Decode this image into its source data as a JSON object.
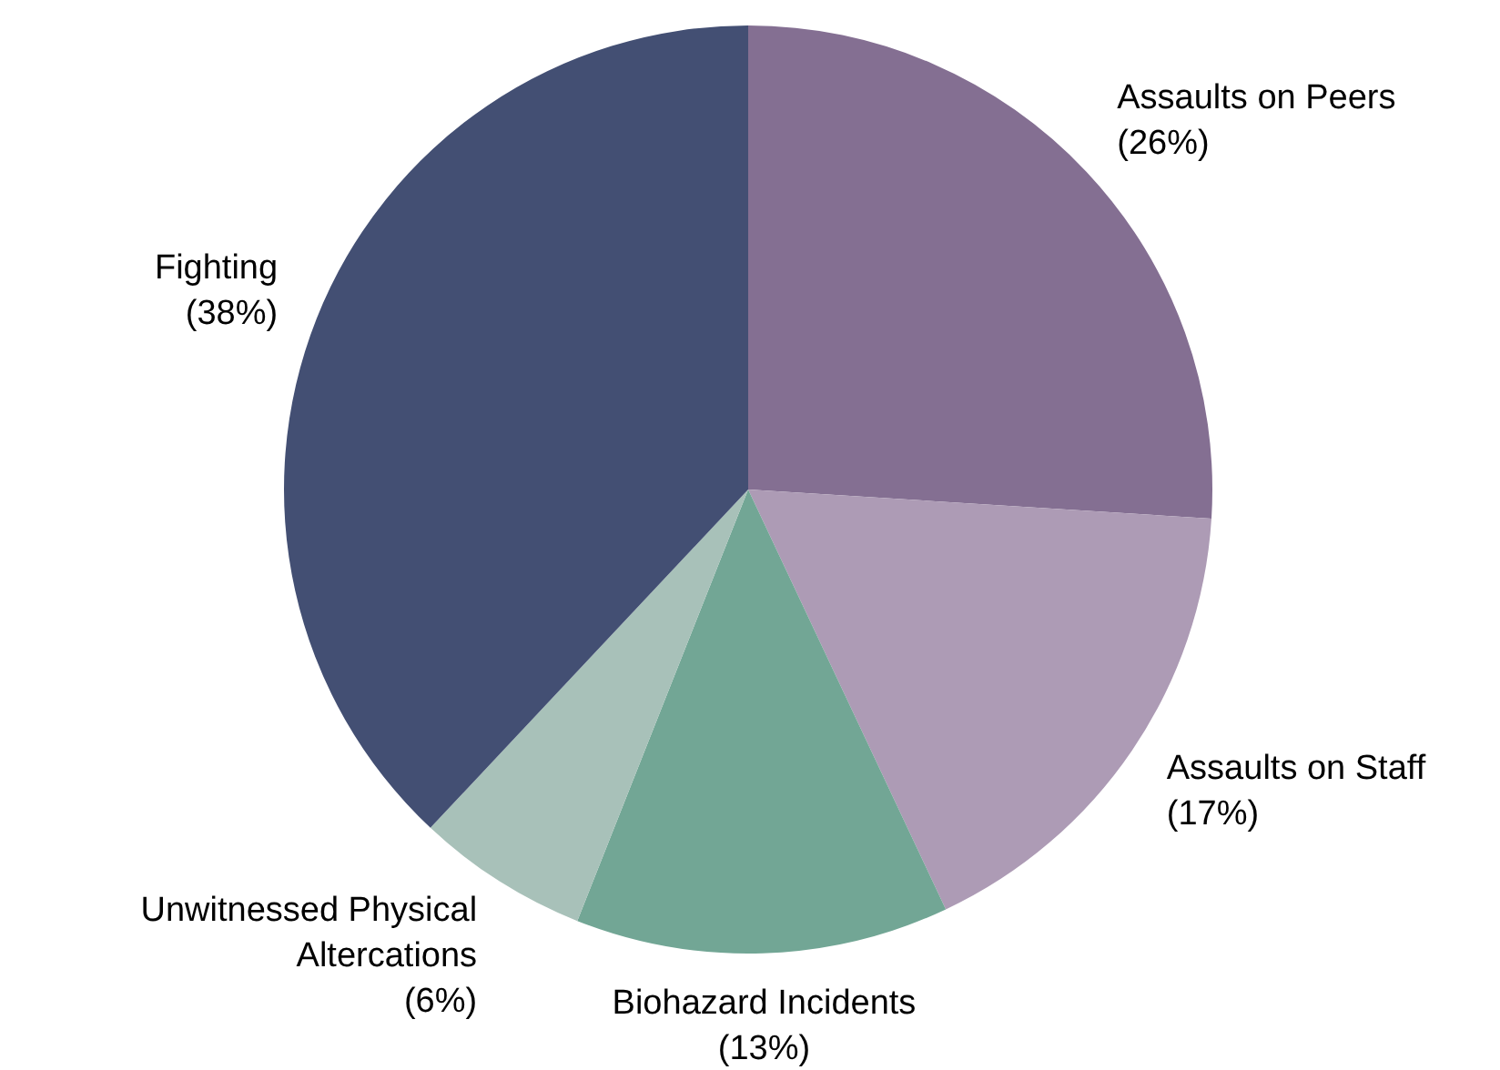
{
  "chart_data": {
    "type": "pie",
    "categories": [
      "Assaults on Peers",
      "Assaults on Staff",
      "Biohazard Incidents",
      "Unwitnessed Physical Altercations",
      "Fighting"
    ],
    "values": [
      26,
      17,
      13,
      6,
      38
    ],
    "value_labels": [
      "(26%)",
      "(17%)",
      "(13%)",
      "(6%)",
      "(38%)"
    ],
    "colors": [
      "#846f92",
      "#ad9bb5",
      "#72a695",
      "#a8c1b9",
      "#434f73"
    ],
    "legend": false
  }
}
